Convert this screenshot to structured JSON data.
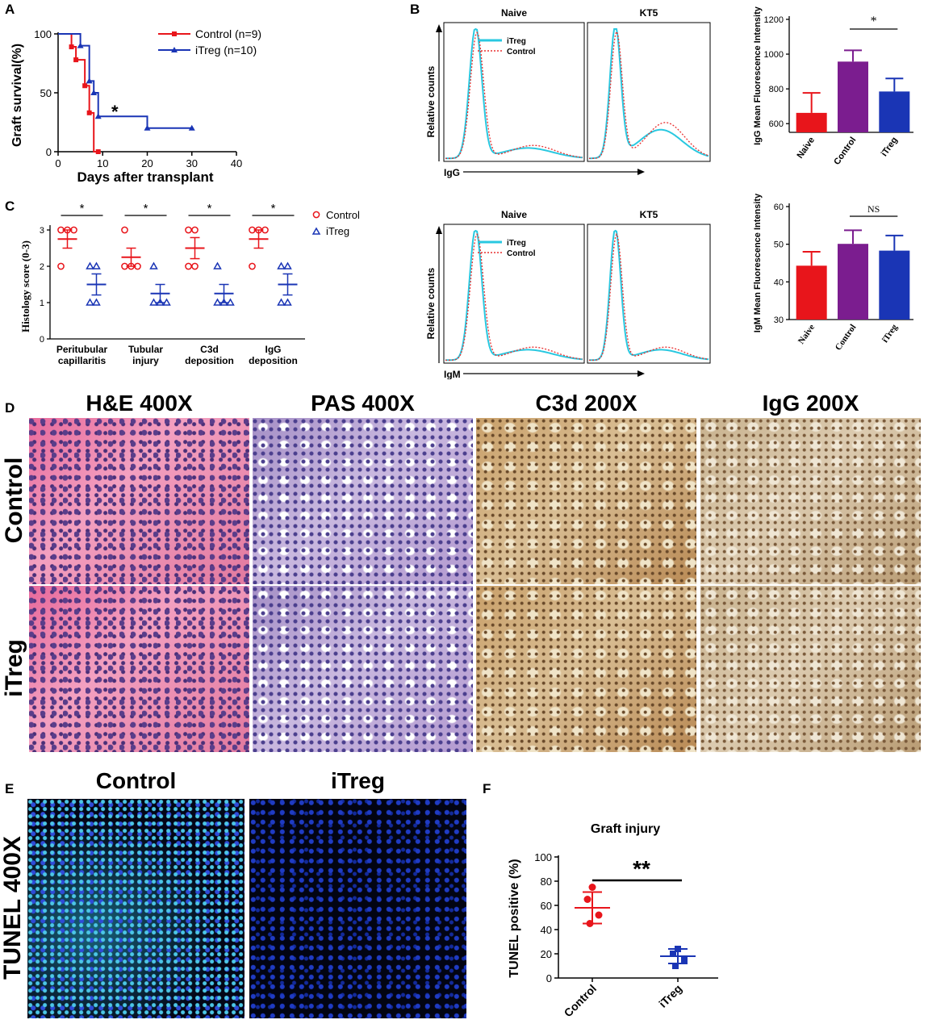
{
  "panels": {
    "a": "A",
    "b": "B",
    "c": "C",
    "d": "D",
    "e": "E",
    "f": "F"
  },
  "colors": {
    "control": "#e8151b",
    "itreg": "#1a35b5",
    "purple": "#7b1d8f",
    "cyan": "#29c8e0",
    "dotted_red": "#e83030"
  },
  "panel_a": {
    "chart_data": {
      "type": "line",
      "step": true,
      "ylabel": "Graft survival(%)",
      "xlabel": "Days after transplant",
      "xlim": [
        0,
        40
      ],
      "ylim": [
        0,
        100
      ],
      "xticks": [
        "0",
        "10",
        "20",
        "30",
        "40"
      ],
      "yticks": [
        "0",
        "50",
        "100"
      ],
      "series": [
        {
          "name": "Control (n=9)",
          "color": "#e8151b",
          "x": [
            0,
            3,
            3,
            4,
            4,
            6,
            6,
            7,
            7,
            8,
            8,
            9
          ],
          "y": [
            100,
            100,
            89,
            89,
            78,
            78,
            56,
            56,
            33,
            33,
            0,
            0
          ],
          "markers_x": [
            3,
            4,
            6,
            7,
            9
          ],
          "markers_y": [
            89,
            78,
            56,
            33,
            0
          ]
        },
        {
          "name": "iTreg (n=10)",
          "color": "#1a35b5",
          "x": [
            0,
            5,
            5,
            7,
            7,
            8,
            8,
            9,
            9,
            20,
            20,
            30
          ],
          "y": [
            100,
            100,
            90,
            90,
            60,
            60,
            50,
            50,
            30,
            30,
            20,
            20
          ],
          "markers_x": [
            5,
            7,
            8,
            9,
            20,
            30
          ],
          "markers_y": [
            90,
            60,
            50,
            30,
            20,
            20
          ]
        }
      ],
      "annotation": "*"
    }
  },
  "panel_b": {
    "hist_top": {
      "left_title": "Naive",
      "right_title": "KT5",
      "ylabel": "Relative counts",
      "xlabel": "IgG",
      "legend": [
        "iTreg",
        "Control"
      ]
    },
    "hist_bottom": {
      "left_title": "Naive",
      "right_title": "KT5",
      "ylabel": "Relative counts",
      "xlabel": "IgM",
      "legend": [
        "iTreg",
        "Control"
      ]
    },
    "bar_igg": {
      "chart_data": {
        "type": "bar",
        "categories": [
          "Naive",
          "Control",
          "iTreg"
        ],
        "values": [
          662,
          957,
          785
        ],
        "errors": [
          115,
          65,
          75
        ],
        "colors": [
          "#e8151b",
          "#7b1d8f",
          "#1a35b5"
        ],
        "ylabel": "IgG Mean Fluorescence Intensity",
        "ylim": [
          550,
          1200
        ],
        "yticks": [
          "600",
          "800",
          "1000",
          "1200"
        ],
        "annotation": "*"
      }
    },
    "bar_igm": {
      "chart_data": {
        "type": "bar",
        "categories": [
          "Naive",
          "Control",
          "iTreg"
        ],
        "values": [
          44.3,
          50.1,
          48.3
        ],
        "errors": [
          3.7,
          3.6,
          4.0
        ],
        "colors": [
          "#e8151b",
          "#7b1d8f",
          "#1a35b5"
        ],
        "ylabel": "IgM Mean Fluorescence Intensity",
        "ylim": [
          30,
          60
        ],
        "yticks": [
          "30",
          "40",
          "50",
          "60"
        ],
        "annotation": "NS"
      }
    }
  },
  "panel_c": {
    "chart_data": {
      "type": "scatter",
      "ylabel": "Histology score (0-3)",
      "ylim": [
        0,
        3
      ],
      "yticks": [
        "0",
        "1",
        "2",
        "3"
      ],
      "categories": [
        "Peritubular capillaritis",
        "Tubular injury",
        "C3d deposition",
        "IgG deposition"
      ],
      "category_lines": [
        [
          "Peritubular",
          "capillaritis"
        ],
        [
          "Tubular",
          "injury"
        ],
        [
          "C3d",
          "deposition"
        ],
        [
          "IgG",
          "deposition"
        ]
      ],
      "legend": [
        "Control",
        "iTreg"
      ],
      "series": [
        {
          "name": "Control",
          "color": "#e8151b",
          "points": [
            [
              3,
              3,
              3,
              2
            ],
            [
              2,
              2,
              2,
              3
            ],
            [
              3,
              3,
              2,
              2
            ],
            [
              3,
              3,
              2,
              3
            ]
          ],
          "mean": [
            2.75,
            2.25,
            2.5,
            2.75
          ],
          "sem": [
            0.25,
            0.25,
            0.29,
            0.25
          ]
        },
        {
          "name": "iTreg",
          "color": "#1a35b5",
          "points": [
            [
              2,
              2,
              1,
              1
            ],
            [
              1,
              1,
              1,
              2
            ],
            [
              1,
              1,
              1,
              2
            ],
            [
              2,
              2,
              1,
              1
            ]
          ],
          "mean": [
            1.5,
            1.25,
            1.25,
            1.5
          ],
          "sem": [
            0.29,
            0.25,
            0.25,
            0.29
          ]
        }
      ],
      "annotation": "*"
    }
  },
  "panel_d": {
    "columns": [
      "H&E 400X",
      "PAS 400X",
      "C3d 200X",
      "IgG 200X"
    ],
    "rows": [
      "Control",
      "iTreg"
    ]
  },
  "panel_e": {
    "columns": [
      "Control",
      "iTreg"
    ],
    "row": "TUNEL 400X"
  },
  "panel_f": {
    "chart_data": {
      "type": "scatter",
      "title": "Graft injury",
      "ylabel": "TUNEL positive (%)",
      "ylim": [
        0,
        100
      ],
      "yticks": [
        "0",
        "20",
        "40",
        "60",
        "80",
        "100"
      ],
      "categories": [
        "Control",
        "iTreg"
      ],
      "series": [
        {
          "name": "Control",
          "color": "#e8151b",
          "points": [
            75,
            65,
            52,
            45
          ],
          "mean": 58,
          "sd": 13
        },
        {
          "name": "iTreg",
          "color": "#1a35b5",
          "points": [
            24,
            20,
            15,
            10
          ],
          "mean": 18,
          "sd": 6
        }
      ],
      "annotation": "**"
    }
  }
}
